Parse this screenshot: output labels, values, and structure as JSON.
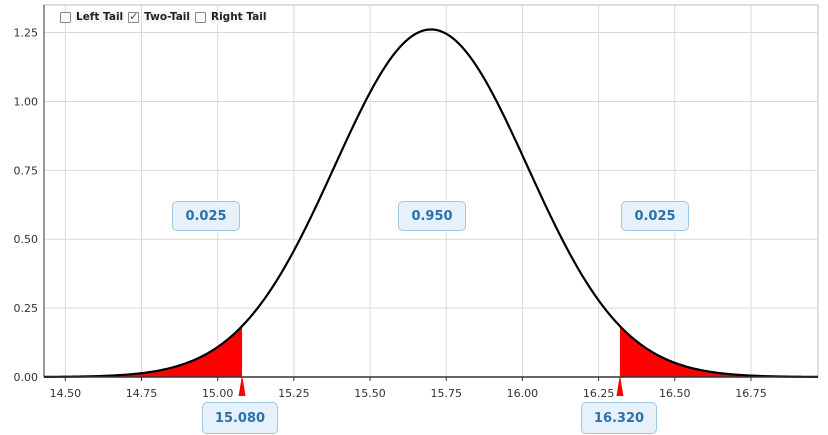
{
  "controls": {
    "left_tail": {
      "label": "Left Tail",
      "checked": false
    },
    "two_tail": {
      "label": "Two-Tail",
      "checked": true
    },
    "right_tail": {
      "label": "Right Tail",
      "checked": false
    }
  },
  "chart_data": {
    "type": "area",
    "distribution": {
      "mean": 15.7,
      "sd": 0.3163
    },
    "xlim": [
      14.43,
      16.97
    ],
    "ylim": [
      0,
      1.35
    ],
    "x_ticks": [
      "14.50",
      "14.75",
      "15.00",
      "15.25",
      "15.50",
      "15.75",
      "16.00",
      "16.25",
      "16.50",
      "16.75"
    ],
    "x_tick_values": [
      14.5,
      14.75,
      15.0,
      15.25,
      15.5,
      15.75,
      16.0,
      16.25,
      16.5,
      16.75
    ],
    "y_ticks": [
      "0.00",
      "0.25",
      "0.50",
      "0.75",
      "1.00",
      "1.25"
    ],
    "y_tick_values": [
      0,
      0.25,
      0.5,
      0.75,
      1.0,
      1.25
    ],
    "grid": true,
    "critical_values": {
      "lower": 15.08,
      "upper": 16.32
    },
    "area_labels": {
      "left": "0.025",
      "center": "0.950",
      "right": "0.025"
    },
    "critical_labels": {
      "lower": "15.080",
      "upper": "16.320"
    },
    "colors": {
      "tail_fill": "#ff0000",
      "curve": "#000000",
      "grid": "#d9d9d9",
      "axis": "#333333"
    }
  }
}
